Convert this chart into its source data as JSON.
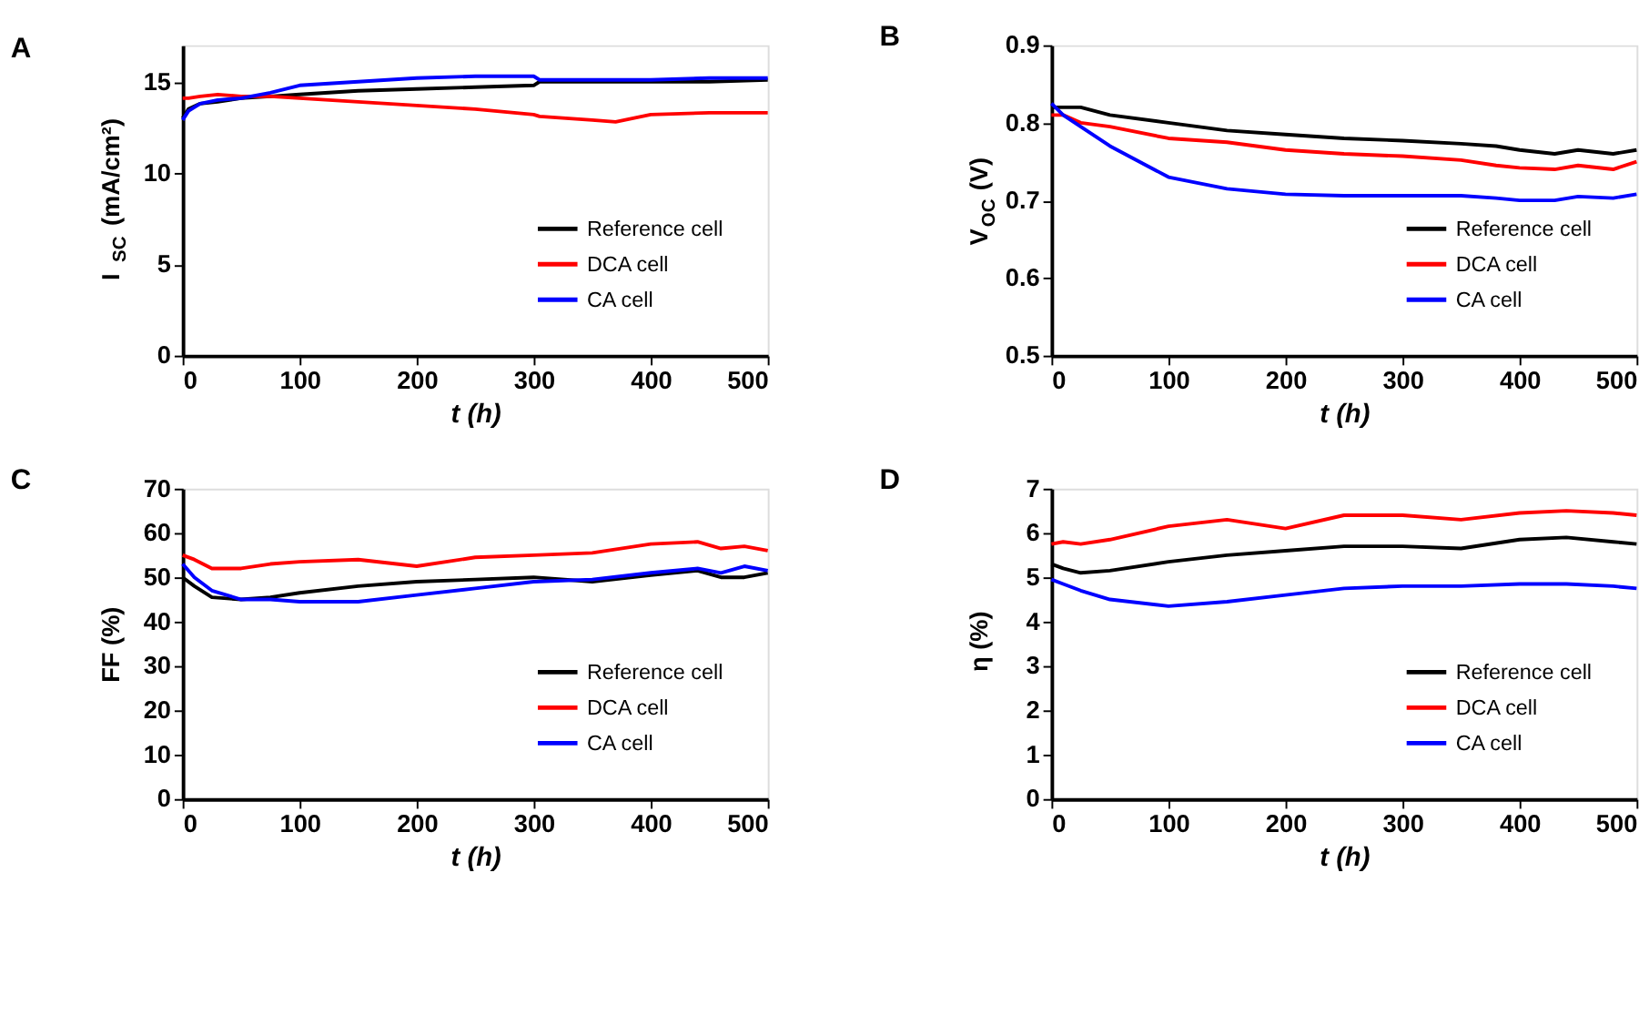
{
  "chart_data": [
    {
      "type": "line",
      "title": "A",
      "xlabel": "t (h)",
      "ylabel": "I$_{SC}$ (mA/cm²)",
      "x": [
        0,
        5,
        15,
        30,
        50,
        75,
        100,
        150,
        200,
        250,
        300,
        305,
        350,
        370,
        400,
        450,
        500
      ],
      "xlim": [
        0,
        500
      ],
      "xticks": [
        0,
        100,
        200,
        300,
        400,
        500
      ],
      "ylim": [
        0,
        17
      ],
      "yticks": [
        0,
        5,
        10,
        15
      ],
      "grid": false,
      "legend": "bottom right",
      "marker": "none",
      "line_style": "solid",
      "series": [
        {
          "name": "Reference cell",
          "color": "#000000",
          "values": [
            13.0,
            13.5,
            13.8,
            13.9,
            14.1,
            14.2,
            14.3,
            14.5,
            14.6,
            14.7,
            14.8,
            15.0,
            15.0,
            15.0,
            15.0,
            15.0,
            15.1
          ]
        },
        {
          "name": "DCA cell",
          "color": "#ff0000",
          "values": [
            14.1,
            14.1,
            14.2,
            14.3,
            14.2,
            14.2,
            14.1,
            13.9,
            13.7,
            13.5,
            13.2,
            13.1,
            12.9,
            12.8,
            13.2,
            13.3,
            13.3
          ]
        },
        {
          "name": "CA cell",
          "color": "#0000ff",
          "values": [
            12.9,
            13.4,
            13.8,
            14.0,
            14.1,
            14.4,
            14.8,
            15.0,
            15.2,
            15.3,
            15.3,
            15.1,
            15.1,
            15.1,
            15.1,
            15.2,
            15.2
          ]
        }
      ]
    },
    {
      "type": "line",
      "title": "B",
      "xlabel": "t (h)",
      "ylabel": "V$_{OC}$ (V)",
      "x": [
        0,
        10,
        25,
        50,
        100,
        150,
        200,
        250,
        300,
        350,
        380,
        400,
        430,
        450,
        480,
        500
      ],
      "xlim": [
        0,
        500
      ],
      "xticks": [
        0,
        100,
        200,
        300,
        400,
        500
      ],
      "ylim": [
        0.5,
        0.9
      ],
      "yticks": [
        0.5,
        0.6,
        0.7,
        0.8,
        0.9
      ],
      "grid": false,
      "legend": "bottom right",
      "marker": "none",
      "line_style": "solid",
      "series": [
        {
          "name": "Reference cell",
          "color": "#000000",
          "values": [
            0.82,
            0.82,
            0.82,
            0.81,
            0.8,
            0.79,
            0.785,
            0.78,
            0.777,
            0.773,
            0.77,
            0.765,
            0.76,
            0.765,
            0.76,
            0.765
          ]
        },
        {
          "name": "DCA cell",
          "color": "#ff0000",
          "values": [
            0.81,
            0.81,
            0.8,
            0.795,
            0.78,
            0.775,
            0.765,
            0.76,
            0.757,
            0.752,
            0.745,
            0.742,
            0.74,
            0.745,
            0.74,
            0.75
          ]
        },
        {
          "name": "CA cell",
          "color": "#0000ff",
          "values": [
            0.825,
            0.81,
            0.795,
            0.77,
            0.73,
            0.715,
            0.708,
            0.706,
            0.706,
            0.706,
            0.703,
            0.7,
            0.7,
            0.705,
            0.703,
            0.708
          ]
        }
      ]
    },
    {
      "type": "line",
      "title": "C",
      "xlabel": "t (h)",
      "ylabel": "FF (%)",
      "x": [
        0,
        10,
        25,
        50,
        75,
        100,
        150,
        200,
        250,
        300,
        350,
        400,
        440,
        460,
        480,
        500
      ],
      "xlim": [
        0,
        500
      ],
      "xticks": [
        0,
        100,
        200,
        300,
        400,
        500
      ],
      "ylim": [
        0,
        70
      ],
      "yticks": [
        0,
        10,
        20,
        30,
        40,
        50,
        60,
        70
      ],
      "grid": false,
      "legend": "bottom right",
      "marker": "none",
      "line_style": "solid",
      "series": [
        {
          "name": "Reference cell",
          "color": "#000000",
          "values": [
            50,
            48,
            45.5,
            45,
            45.5,
            46.5,
            48,
            49,
            49.5,
            50,
            49,
            50.5,
            51.5,
            50,
            50,
            51
          ]
        },
        {
          "name": "DCA cell",
          "color": "#ff0000",
          "values": [
            55,
            54,
            52,
            52,
            53,
            53.5,
            54,
            52.5,
            54.5,
            55,
            55.5,
            57.5,
            58,
            56.5,
            57,
            56
          ]
        },
        {
          "name": "CA cell",
          "color": "#0000ff",
          "values": [
            53,
            50,
            47,
            45,
            45,
            44.5,
            44.5,
            46,
            47.5,
            49,
            49.5,
            51,
            52,
            51,
            52.5,
            51.5
          ]
        }
      ]
    },
    {
      "type": "line",
      "title": "D",
      "xlabel": "t (h)",
      "ylabel": "η (%)",
      "x": [
        0,
        10,
        25,
        50,
        100,
        150,
        200,
        250,
        300,
        350,
        400,
        440,
        480,
        500
      ],
      "xlim": [
        0,
        500
      ],
      "xticks": [
        0,
        100,
        200,
        300,
        400,
        500
      ],
      "ylim": [
        0,
        7
      ],
      "yticks": [
        0,
        1,
        2,
        3,
        4,
        5,
        6,
        7
      ],
      "grid": false,
      "legend": "bottom right",
      "marker": "none",
      "line_style": "solid",
      "series": [
        {
          "name": "Reference cell",
          "color": "#000000",
          "values": [
            5.3,
            5.2,
            5.1,
            5.15,
            5.35,
            5.5,
            5.6,
            5.7,
            5.7,
            5.65,
            5.85,
            5.9,
            5.8,
            5.75
          ]
        },
        {
          "name": "DCA cell",
          "color": "#ff0000",
          "values": [
            5.75,
            5.8,
            5.75,
            5.85,
            6.15,
            6.3,
            6.1,
            6.4,
            6.4,
            6.3,
            6.45,
            6.5,
            6.45,
            6.4
          ]
        },
        {
          "name": "CA cell",
          "color": "#0000ff",
          "values": [
            4.95,
            4.85,
            4.7,
            4.5,
            4.35,
            4.45,
            4.6,
            4.75,
            4.8,
            4.8,
            4.85,
            4.85,
            4.8,
            4.75
          ]
        }
      ]
    }
  ]
}
